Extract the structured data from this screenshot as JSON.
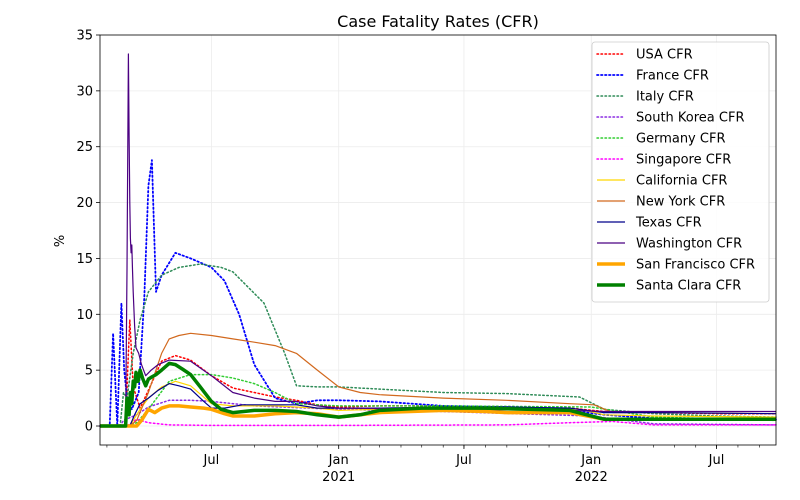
{
  "chart_data": {
    "type": "line",
    "title": "Case Fatality Rates (CFR)",
    "ylabel": "%",
    "xlabel": "",
    "ylim": [
      -1.7,
      35
    ],
    "xlim": [
      "2020-01-22",
      "2022-09-25"
    ],
    "yticks": [
      0,
      5,
      10,
      15,
      20,
      25,
      30,
      35
    ],
    "xticks": [
      {
        "date": "2020-07-01",
        "label": "Jul",
        "sublabel": ""
      },
      {
        "date": "2021-01-01",
        "label": "Jan",
        "sublabel": "2021"
      },
      {
        "date": "2021-07-01",
        "label": "Jul",
        "sublabel": ""
      },
      {
        "date": "2022-01-01",
        "label": "Jan",
        "sublabel": "2022"
      },
      {
        "date": "2022-07-01",
        "label": "Jul",
        "sublabel": ""
      }
    ],
    "grid": true,
    "legend_position": "top-right",
    "series": [
      {
        "name": "USA CFR",
        "color": "#ff0000",
        "style": "dotted",
        "width": 1.5,
        "x": [
          "2020-01-22",
          "2020-02-28",
          "2020-03-02",
          "2020-03-05",
          "2020-03-10",
          "2020-03-20",
          "2020-04-01",
          "2020-04-20",
          "2020-05-10",
          "2020-06-01",
          "2020-07-01",
          "2020-08-01",
          "2020-09-01",
          "2020-10-01",
          "2020-11-01",
          "2020-12-01",
          "2021-01-01",
          "2021-03-01",
          "2021-06-01",
          "2021-09-01",
          "2021-12-01",
          "2022-01-20",
          "2022-04-01",
          "2022-07-01",
          "2022-09-25"
        ],
        "y": [
          0,
          0,
          5.0,
          9.5,
          3.5,
          1.6,
          3.2,
          5.8,
          6.3,
          5.9,
          4.5,
          3.4,
          3.0,
          2.6,
          2.3,
          1.9,
          1.7,
          1.8,
          1.8,
          1.6,
          1.6,
          1.3,
          1.2,
          1.1,
          1.1
        ]
      },
      {
        "name": "France CFR",
        "color": "#0000ff",
        "style": "dotted",
        "width": 1.8,
        "x": [
          "2020-01-22",
          "2020-02-05",
          "2020-02-10",
          "2020-02-16",
          "2020-02-22",
          "2020-02-26",
          "2020-03-01",
          "2020-03-08",
          "2020-03-18",
          "2020-03-26",
          "2020-04-01",
          "2020-04-06",
          "2020-04-12",
          "2020-04-20",
          "2020-05-10",
          "2020-06-01",
          "2020-07-01",
          "2020-07-20",
          "2020-08-10",
          "2020-09-01",
          "2020-10-01",
          "2020-11-01",
          "2020-12-01",
          "2021-01-01",
          "2021-03-01",
          "2021-06-01",
          "2021-09-01",
          "2021-12-01",
          "2022-01-20",
          "2022-04-01",
          "2022-07-01",
          "2022-09-25"
        ],
        "y": [
          0,
          0,
          8.3,
          0,
          11.0,
          5.0,
          2.5,
          1.5,
          3.0,
          11.5,
          21.5,
          23.8,
          12.0,
          13.5,
          15.5,
          15.0,
          14.2,
          13.0,
          10.0,
          5.5,
          2.5,
          2.0,
          2.3,
          2.3,
          2.2,
          1.8,
          1.7,
          1.4,
          1.0,
          0.7,
          0.6,
          0.6
        ]
      },
      {
        "name": "Italy CFR",
        "color": "#2e8b57",
        "style": "dotted",
        "width": 1.5,
        "x": [
          "2020-01-22",
          "2020-02-20",
          "2020-02-25",
          "2020-03-01",
          "2020-03-10",
          "2020-03-20",
          "2020-04-01",
          "2020-04-20",
          "2020-05-15",
          "2020-06-15",
          "2020-07-15",
          "2020-08-01",
          "2020-09-15",
          "2020-10-15",
          "2020-11-01",
          "2020-12-01",
          "2021-01-01",
          "2021-03-01",
          "2021-06-01",
          "2021-09-01",
          "2021-12-15",
          "2022-01-20",
          "2022-04-01",
          "2022-07-01",
          "2022-09-25"
        ],
        "y": [
          0,
          0,
          3.0,
          2.5,
          6.5,
          9.5,
          12.0,
          13.5,
          14.2,
          14.5,
          14.2,
          13.8,
          11.0,
          6.5,
          3.6,
          3.5,
          3.5,
          3.3,
          3.0,
          2.9,
          2.6,
          1.5,
          1.1,
          0.9,
          0.8
        ]
      },
      {
        "name": "South Korea CFR",
        "color": "#8a2be2",
        "style": "dotted",
        "width": 1.5,
        "x": [
          "2020-01-22",
          "2020-02-20",
          "2020-02-25",
          "2020-03-15",
          "2020-04-01",
          "2020-05-01",
          "2020-06-01",
          "2020-07-01",
          "2020-09-01",
          "2021-01-01",
          "2021-06-01",
          "2022-01-01",
          "2022-04-01",
          "2022-09-25"
        ],
        "y": [
          0,
          0,
          0.5,
          1.0,
          1.7,
          2.3,
          2.3,
          2.2,
          1.8,
          1.5,
          1.3,
          0.9,
          0.2,
          0.1
        ]
      },
      {
        "name": "Germany CFR",
        "color": "#32cd32",
        "style": "dotted",
        "width": 1.5,
        "x": [
          "2020-01-22",
          "2020-03-01",
          "2020-03-15",
          "2020-04-01",
          "2020-05-01",
          "2020-06-01",
          "2020-07-01",
          "2020-08-01",
          "2020-09-01",
          "2020-10-01",
          "2020-11-01",
          "2021-01-01",
          "2021-06-01",
          "2022-01-01",
          "2022-04-01",
          "2022-09-25"
        ],
        "y": [
          0,
          0,
          0.3,
          1.5,
          4.0,
          4.6,
          4.6,
          4.3,
          3.8,
          3.0,
          2.0,
          1.8,
          1.8,
          1.7,
          0.8,
          0.5
        ]
      },
      {
        "name": "Singapore CFR",
        "color": "#ff00ff",
        "style": "dotted",
        "width": 1.5,
        "x": [
          "2020-01-22",
          "2020-03-01",
          "2020-03-15",
          "2020-04-01",
          "2020-05-01",
          "2020-07-01",
          "2021-01-01",
          "2021-09-01",
          "2021-12-01",
          "2022-02-01",
          "2022-04-01",
          "2022-09-25"
        ],
        "y": [
          0,
          0,
          0.6,
          0.3,
          0.1,
          0.05,
          0.05,
          0.1,
          0.3,
          0.4,
          0.1,
          0.1
        ]
      },
      {
        "name": "California CFR",
        "color": "#ffd700",
        "style": "solid",
        "width": 1.2,
        "x": [
          "2020-01-22",
          "2020-03-05",
          "2020-03-20",
          "2020-04-01",
          "2020-04-20",
          "2020-05-10",
          "2020-06-01",
          "2020-07-01",
          "2020-08-01",
          "2020-09-01",
          "2020-10-01",
          "2020-12-01",
          "2021-01-01",
          "2021-03-01",
          "2021-06-01",
          "2021-09-01",
          "2021-12-15",
          "2022-01-20",
          "2022-04-01",
          "2022-09-25"
        ],
        "y": [
          0,
          0,
          1.5,
          2.5,
          3.5,
          4.0,
          3.6,
          2.0,
          1.8,
          1.8,
          1.8,
          1.6,
          1.4,
          1.5,
          1.6,
          1.6,
          1.5,
          1.0,
          0.9,
          0.8
        ]
      },
      {
        "name": "New York CFR",
        "color": "#d2691e",
        "style": "solid",
        "width": 1.2,
        "x": [
          "2020-01-22",
          "2020-03-05",
          "2020-03-15",
          "2020-04-01",
          "2020-04-20",
          "2020-05-01",
          "2020-05-15",
          "2020-06-01",
          "2020-07-01",
          "2020-08-01",
          "2020-09-01",
          "2020-10-01",
          "2020-11-01",
          "2020-12-01",
          "2021-01-01",
          "2021-02-01",
          "2021-03-01",
          "2021-06-01",
          "2021-09-01",
          "2021-12-01",
          "2022-01-05",
          "2022-02-01",
          "2022-04-01",
          "2022-09-25"
        ],
        "y": [
          0,
          0,
          0.5,
          3.0,
          6.5,
          7.8,
          8.1,
          8.3,
          8.1,
          7.8,
          7.5,
          7.2,
          6.5,
          5.0,
          3.5,
          3.0,
          2.8,
          2.5,
          2.3,
          2.0,
          1.9,
          1.2,
          1.2,
          1.1
        ]
      },
      {
        "name": "Texas CFR",
        "color": "#00008b",
        "style": "solid",
        "width": 1.2,
        "x": [
          "2020-01-22",
          "2020-03-05",
          "2020-03-12",
          "2020-03-20",
          "2020-04-01",
          "2020-04-15",
          "2020-05-01",
          "2020-05-15",
          "2020-06-01",
          "2020-06-20",
          "2020-07-01",
          "2020-07-20",
          "2020-08-15",
          "2020-09-15",
          "2020-11-01",
          "2020-12-01",
          "2021-01-01",
          "2021-03-01",
          "2021-06-01",
          "2021-09-01",
          "2021-12-01",
          "2022-01-20",
          "2022-04-01",
          "2022-09-25"
        ],
        "y": [
          0,
          0,
          1.0,
          2.0,
          2.5,
          3.2,
          3.8,
          3.6,
          3.3,
          2.2,
          1.6,
          1.6,
          1.9,
          1.9,
          1.9,
          1.6,
          1.6,
          1.6,
          1.7,
          1.7,
          1.6,
          1.2,
          1.2,
          1.1
        ]
      },
      {
        "name": "Washington CFR",
        "color": "#4b0082",
        "style": "solid",
        "width": 1.2,
        "x": [
          "2020-01-22",
          "2020-02-28",
          "2020-03-01",
          "2020-03-03",
          "2020-03-04",
          "2020-03-05",
          "2020-03-06",
          "2020-03-07",
          "2020-03-08",
          "2020-03-09",
          "2020-03-10",
          "2020-03-12",
          "2020-03-14",
          "2020-03-18",
          "2020-03-22",
          "2020-03-28",
          "2020-04-05",
          "2020-04-15",
          "2020-05-01",
          "2020-06-01",
          "2020-07-01",
          "2020-08-01",
          "2020-09-01",
          "2020-10-01",
          "2020-11-01",
          "2020-12-01",
          "2021-01-01",
          "2021-06-01",
          "2021-12-01",
          "2022-01-20",
          "2022-04-01",
          "2022-09-25"
        ],
        "y": [
          0,
          0,
          14.0,
          33.3,
          26.0,
          20.0,
          16.8,
          15.5,
          16.2,
          14.0,
          12.0,
          9.0,
          7.0,
          6.5,
          5.5,
          4.5,
          5.0,
          5.5,
          5.9,
          5.8,
          4.5,
          3.0,
          2.5,
          2.2,
          2.2,
          1.8,
          1.6,
          1.5,
          1.4,
          1.3,
          1.3,
          1.3
        ]
      },
      {
        "name": "San Francisco CFR",
        "color": "#ffa500",
        "style": "solid",
        "width": 3.5,
        "x": [
          "2020-01-22",
          "2020-03-15",
          "2020-03-22",
          "2020-04-01",
          "2020-04-10",
          "2020-04-20",
          "2020-05-01",
          "2020-05-15",
          "2020-06-01",
          "2020-06-20",
          "2020-07-01",
          "2020-07-20",
          "2020-08-01",
          "2020-09-01",
          "2020-10-01",
          "2020-11-01",
          "2020-12-01",
          "2021-01-01",
          "2021-03-01",
          "2021-06-01",
          "2021-08-01",
          "2021-09-01",
          "2021-12-01",
          "2022-01-20",
          "2022-04-01",
          "2022-09-25"
        ],
        "y": [
          0,
          0,
          0.5,
          1.5,
          1.2,
          1.6,
          1.8,
          1.8,
          1.7,
          1.6,
          1.5,
          1.1,
          0.9,
          0.9,
          1.1,
          1.2,
          1.1,
          0.8,
          1.2,
          1.4,
          1.3,
          1.2,
          1.2,
          0.6,
          0.6,
          0.6
        ]
      },
      {
        "name": "Santa Clara CFR",
        "color": "#008000",
        "style": "solid",
        "width": 3.5,
        "x": [
          "2020-01-22",
          "2020-02-28",
          "2020-03-01",
          "2020-03-04",
          "2020-03-06",
          "2020-03-08",
          "2020-03-10",
          "2020-03-12",
          "2020-03-14",
          "2020-03-17",
          "2020-03-20",
          "2020-03-24",
          "2020-03-28",
          "2020-04-01",
          "2020-04-06",
          "2020-04-12",
          "2020-04-20",
          "2020-05-01",
          "2020-05-10",
          "2020-05-20",
          "2020-06-01",
          "2020-06-15",
          "2020-07-01",
          "2020-07-15",
          "2020-08-01",
          "2020-09-01",
          "2020-10-01",
          "2020-11-01",
          "2020-12-01",
          "2021-01-01",
          "2021-02-01",
          "2021-03-01",
          "2021-05-01",
          "2021-08-01",
          "2021-12-01",
          "2022-01-20",
          "2022-04-01",
          "2022-09-25"
        ],
        "y": [
          0,
          0,
          2.5,
          1.0,
          3.0,
          2.0,
          4.0,
          3.5,
          4.8,
          4.0,
          5.0,
          4.2,
          3.6,
          4.2,
          4.4,
          4.6,
          5.0,
          5.6,
          5.5,
          5.1,
          4.6,
          3.5,
          2.2,
          1.5,
          1.2,
          1.4,
          1.4,
          1.3,
          1.0,
          0.8,
          1.0,
          1.4,
          1.6,
          1.6,
          1.4,
          0.6,
          0.6,
          0.6
        ]
      }
    ]
  }
}
